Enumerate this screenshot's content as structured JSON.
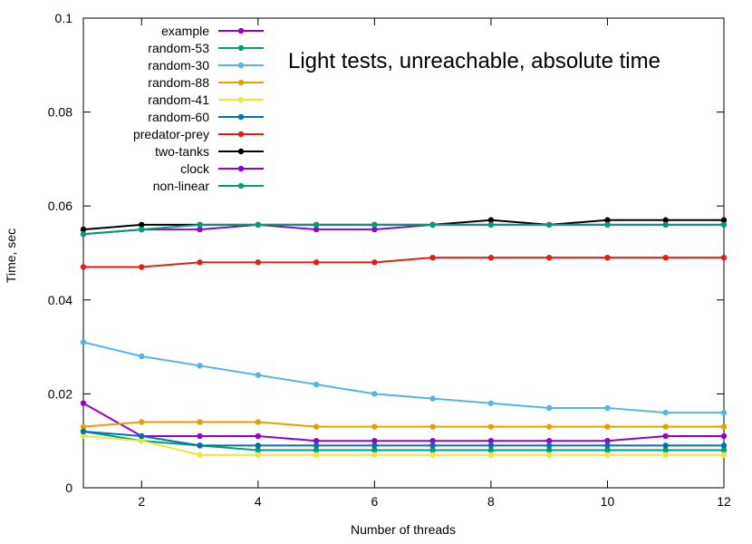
{
  "chart_data": {
    "type": "line",
    "title": "Light tests, unreachable, absolute time",
    "xlabel": "Number of threads",
    "ylabel": "Time, sec",
    "xlim": [
      1,
      12
    ],
    "ylim": [
      0,
      0.1
    ],
    "xticks": [
      2,
      4,
      6,
      8,
      10,
      12
    ],
    "yticks": [
      0,
      0.02,
      0.04,
      0.06,
      0.08,
      0.1
    ],
    "ytick_labels": [
      "0",
      "0.02",
      "0.04",
      "0.06",
      "0.08",
      "0.1"
    ],
    "grid": false,
    "legend_position": "top-left",
    "x": [
      1,
      2,
      3,
      4,
      5,
      6,
      7,
      8,
      9,
      10,
      11,
      12
    ],
    "series": [
      {
        "name": "example",
        "color": "#9400d3",
        "values": [
          0.018,
          0.011,
          0.011,
          0.011,
          0.01,
          0.01,
          0.01,
          0.01,
          0.01,
          0.01,
          0.011,
          0.011
        ]
      },
      {
        "name": "random-53",
        "color": "#009e73",
        "values": [
          0.012,
          0.01,
          0.009,
          0.008,
          0.008,
          0.008,
          0.008,
          0.008,
          0.008,
          0.008,
          0.008,
          0.008
        ]
      },
      {
        "name": "random-30",
        "color": "#56b4e9",
        "values": [
          0.031,
          0.028,
          0.026,
          0.024,
          0.022,
          0.02,
          0.019,
          0.018,
          0.017,
          0.017,
          0.016,
          0.016
        ]
      },
      {
        "name": "random-88",
        "color": "#e69f00",
        "values": [
          0.013,
          0.014,
          0.014,
          0.014,
          0.013,
          0.013,
          0.013,
          0.013,
          0.013,
          0.013,
          0.013,
          0.013
        ]
      },
      {
        "name": "random-41",
        "color": "#f0e442",
        "values": [
          0.011,
          0.01,
          0.007,
          0.007,
          0.007,
          0.007,
          0.007,
          0.007,
          0.007,
          0.007,
          0.007,
          0.007
        ]
      },
      {
        "name": "random-60",
        "color": "#0072b2",
        "values": [
          0.012,
          0.011,
          0.009,
          0.009,
          0.009,
          0.009,
          0.009,
          0.009,
          0.009,
          0.009,
          0.009,
          0.009
        ]
      },
      {
        "name": "predator-prey",
        "color": "#e51e10",
        "values": [
          0.047,
          0.047,
          0.048,
          0.048,
          0.048,
          0.048,
          0.049,
          0.049,
          0.049,
          0.049,
          0.049,
          0.049
        ]
      },
      {
        "name": "two-tanks",
        "color": "#000000",
        "values": [
          0.055,
          0.056,
          0.056,
          0.056,
          0.056,
          0.056,
          0.056,
          0.057,
          0.056,
          0.057,
          0.057,
          0.057
        ]
      },
      {
        "name": "clock",
        "color": "#9400d3",
        "values": [
          0.054,
          0.055,
          0.055,
          0.056,
          0.055,
          0.055,
          0.056,
          0.056,
          0.056,
          0.056,
          0.056,
          0.056
        ]
      },
      {
        "name": "non-linear",
        "color": "#009e73",
        "values": [
          0.054,
          0.055,
          0.056,
          0.056,
          0.056,
          0.056,
          0.056,
          0.056,
          0.056,
          0.056,
          0.056,
          0.056
        ]
      }
    ]
  }
}
